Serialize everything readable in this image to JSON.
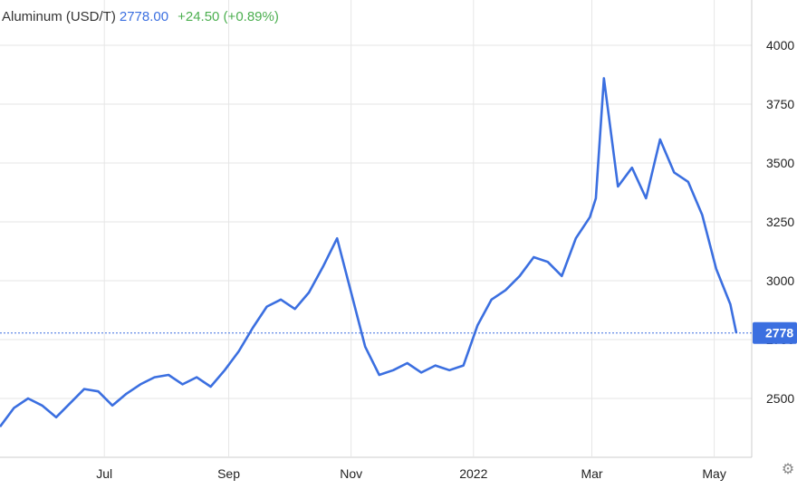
{
  "header": {
    "name": "Aluminum (USD/T)",
    "price": "2778.00",
    "change": "+24.50 (+0.89%)"
  },
  "colors": {
    "line": "#3b6fe0",
    "grid": "#e6e6e6",
    "change_positive": "#4caf50"
  },
  "icons": {
    "settings": "gear-icon"
  },
  "chart_data": {
    "type": "line",
    "title": "Aluminum (USD/T)",
    "xlabel": "",
    "ylabel": "",
    "x_ticks": [
      "Jul",
      "Sep",
      "Nov",
      "2022",
      "Mar",
      "May"
    ],
    "y_ticks": [
      2500,
      2750,
      3000,
      3250,
      3500,
      3750,
      4000
    ],
    "ylim": [
      2300,
      4000
    ],
    "grid": true,
    "current_value": 2778,
    "current_value_label": "2778",
    "series": [
      {
        "name": "",
        "x": [
          "2021-05-10",
          "2021-05-17",
          "2021-05-24",
          "2021-05-31",
          "2021-06-07",
          "2021-06-14",
          "2021-06-21",
          "2021-06-28",
          "2021-07-05",
          "2021-07-12",
          "2021-07-19",
          "2021-07-26",
          "2021-08-02",
          "2021-08-09",
          "2021-08-16",
          "2021-08-23",
          "2021-08-30",
          "2021-09-06",
          "2021-09-13",
          "2021-09-20",
          "2021-09-27",
          "2021-10-04",
          "2021-10-11",
          "2021-10-18",
          "2021-10-25",
          "2021-11-01",
          "2021-11-08",
          "2021-11-15",
          "2021-11-22",
          "2021-11-29",
          "2021-12-06",
          "2021-12-13",
          "2021-12-20",
          "2021-12-27",
          "2022-01-03",
          "2022-01-10",
          "2022-01-17",
          "2022-01-24",
          "2022-01-31",
          "2022-02-07",
          "2022-02-14",
          "2022-02-21",
          "2022-02-28",
          "2022-03-03",
          "2022-03-07",
          "2022-03-14",
          "2022-03-21",
          "2022-03-28",
          "2022-04-04",
          "2022-04-11",
          "2022-04-18",
          "2022-04-25",
          "2022-05-02",
          "2022-05-09",
          "2022-05-12"
        ],
        "values": [
          2380,
          2460,
          2500,
          2470,
          2420,
          2480,
          2540,
          2530,
          2470,
          2520,
          2560,
          2590,
          2600,
          2560,
          2590,
          2550,
          2620,
          2700,
          2800,
          2890,
          2920,
          2880,
          2950,
          3060,
          3180,
          2950,
          2720,
          2600,
          2620,
          2650,
          2610,
          2640,
          2620,
          2640,
          2810,
          2920,
          2960,
          3020,
          3100,
          3080,
          3020,
          3180,
          3270,
          3350,
          3860,
          3400,
          3480,
          3350,
          3600,
          3460,
          3420,
          3280,
          3050,
          2900,
          2778
        ]
      }
    ]
  }
}
